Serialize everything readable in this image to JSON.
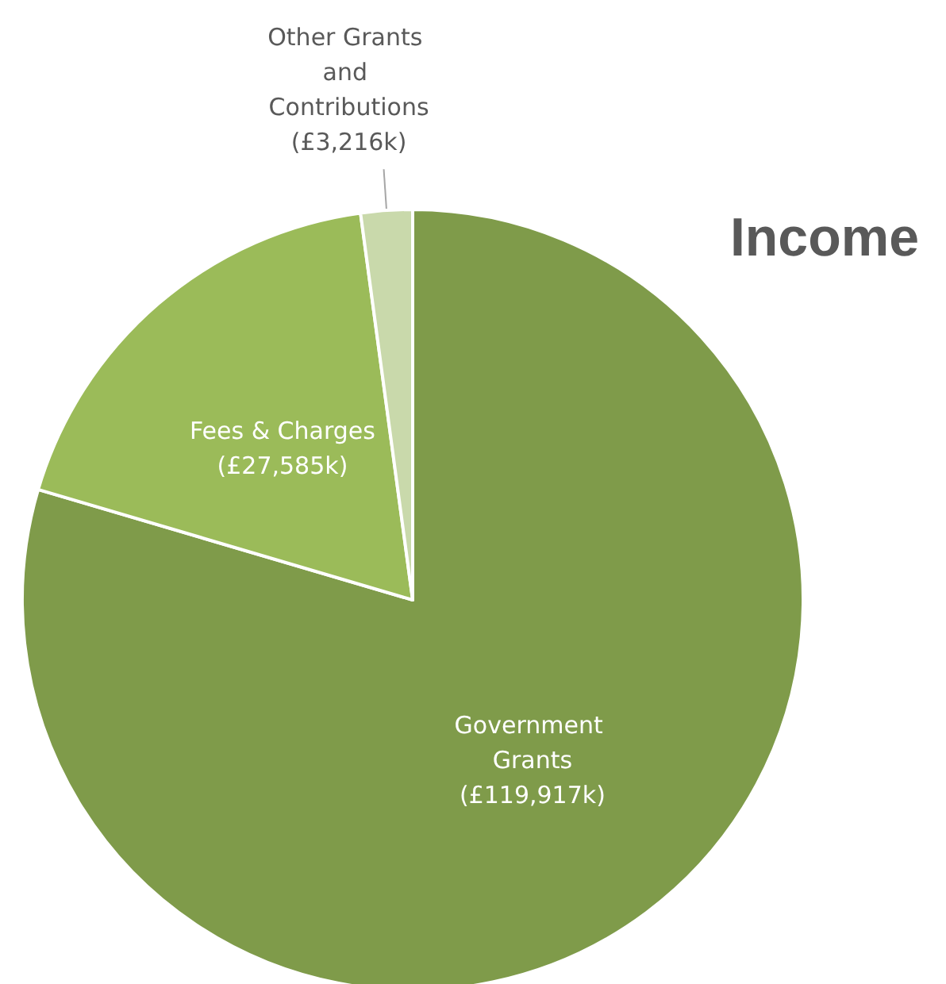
{
  "chart_data": {
    "type": "pie",
    "title": "Income",
    "categories": [
      "Government Grants",
      "Fees & Charges",
      "Other Grants and Contributions"
    ],
    "values": [
      119917,
      27585,
      3216
    ],
    "value_labels": [
      "(£119,917k)",
      "(£27,585k)",
      "(£3,216k)"
    ],
    "colors": [
      "#7f9b4a",
      "#9bbb59",
      "#c9d9ab"
    ],
    "legend": false
  }
}
